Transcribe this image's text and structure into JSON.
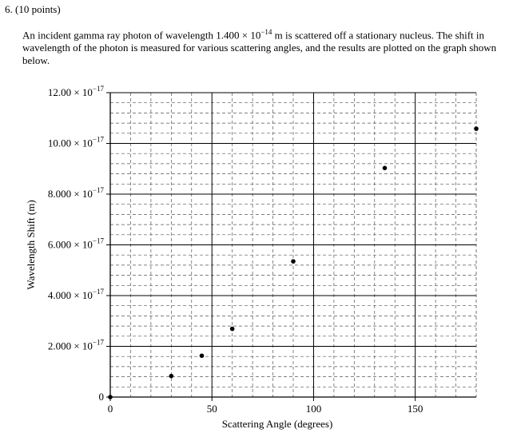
{
  "question": {
    "number": "6.",
    "points": "(10 points)",
    "text_part1": "An incident gamma ray photon of wavelength 1.400 × 10",
    "text_exp": "−14",
    "text_part2": " m  is scattered off a stationary nucleus. The shift in wavelength of the photon is measured for various scattering angles, and the results are plotted on the graph shown below."
  },
  "chart_data": {
    "type": "scatter",
    "xlabel": "Scattering Angle (degrees)",
    "ylabel": "Wavelength Shift (m)",
    "xlim": [
      0,
      180
    ],
    "ylim": [
      0,
      1.2e-16
    ],
    "x_ticks": [
      0,
      50,
      100,
      150
    ],
    "x_tick_labels": [
      "0",
      "50",
      "100",
      "150"
    ],
    "y_ticks": [
      0,
      2e-17,
      4e-17,
      6e-17,
      8e-17,
      1e-16,
      1.2e-16
    ],
    "y_tick_labels": [
      {
        "mantissa": "0",
        "exp": ""
      },
      {
        "mantissa": "2.000 × 10",
        "exp": "−17"
      },
      {
        "mantissa": "4.000 × 10",
        "exp": "−17"
      },
      {
        "mantissa": "6.000 × 10",
        "exp": "−17"
      },
      {
        "mantissa": "8.000 × 10",
        "exp": "−17"
      },
      {
        "mantissa": "10.00 × 10",
        "exp": "−17"
      },
      {
        "mantissa": "12.00 × 10",
        "exp": "−17"
      }
    ],
    "grid": true,
    "points": [
      {
        "x": 0,
        "y": 0
      },
      {
        "x": 30,
        "y": 8.3e-18
      },
      {
        "x": 45,
        "y": 1.63e-17
      },
      {
        "x": 60,
        "y": 2.69e-17
      },
      {
        "x": 90,
        "y": 5.35e-17
      },
      {
        "x": 135,
        "y": 9.03e-17
      },
      {
        "x": 180,
        "y": 1.058e-16
      }
    ]
  }
}
